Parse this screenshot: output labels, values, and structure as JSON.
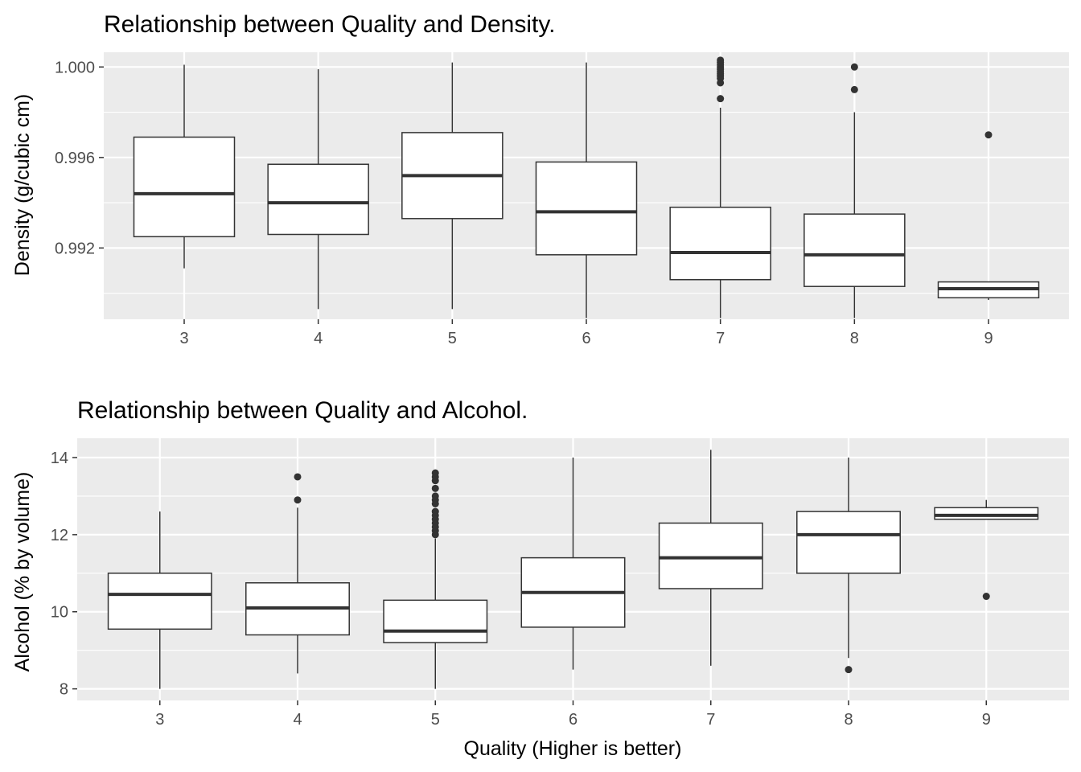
{
  "chart_data": [
    {
      "type": "boxplot",
      "title": "Relationship between Quality and Density.",
      "xlabel": "",
      "ylabel": "Density (g/cubic cm)",
      "categories": [
        "3",
        "4",
        "5",
        "6",
        "7",
        "8",
        "9"
      ],
      "ylim": [
        0.98885,
        1.00065
      ],
      "yticks": [
        0.992,
        0.996,
        1.0
      ],
      "ytick_labels": [
        "0.992",
        "0.996",
        "1.000"
      ],
      "grid": true,
      "boxes": [
        {
          "category": "3",
          "whisker_low": 0.9911,
          "q1": 0.9925,
          "median": 0.9944,
          "q3": 0.9969,
          "whisker_high": 1.0001,
          "outliers": []
        },
        {
          "category": "4",
          "whisker_low": 0.9893,
          "q1": 0.9926,
          "median": 0.994,
          "q3": 0.9957,
          "whisker_high": 0.9999,
          "outliers": []
        },
        {
          "category": "5",
          "whisker_low": 0.9893,
          "q1": 0.9933,
          "median": 0.9952,
          "q3": 0.9971,
          "whisker_high": 1.0002,
          "outliers": []
        },
        {
          "category": "6",
          "whisker_low": 0.9889,
          "q1": 0.9917,
          "median": 0.9936,
          "q3": 0.9958,
          "whisker_high": 1.0002,
          "outliers": []
        },
        {
          "category": "7",
          "whisker_low": 0.9889,
          "q1": 0.9906,
          "median": 0.9918,
          "q3": 0.9938,
          "whisker_high": 0.9982,
          "outliers": [
            0.9986,
            0.9993,
            0.9995,
            0.9996,
            0.9997,
            0.9998,
            0.9999,
            1.0,
            1.0001,
            1.0002,
            1.0003
          ]
        },
        {
          "category": "8",
          "whisker_low": 0.9889,
          "q1": 0.9903,
          "median": 0.9917,
          "q3": 0.9935,
          "whisker_high": 0.998,
          "outliers": [
            0.999,
            1.0
          ]
        },
        {
          "category": "9",
          "whisker_low": 0.9897,
          "q1": 0.9898,
          "median": 0.9902,
          "q3": 0.9905,
          "whisker_high": 0.9905,
          "outliers": [
            0.997
          ]
        }
      ]
    },
    {
      "type": "boxplot",
      "title": "Relationship between Quality and Alcohol.",
      "xlabel": "Quality (Higher is better)",
      "ylabel": "Alcohol (% by volume)",
      "categories": [
        "3",
        "4",
        "5",
        "6",
        "7",
        "8",
        "9"
      ],
      "ylim": [
        7.7,
        14.5
      ],
      "yticks": [
        8,
        10,
        12,
        14
      ],
      "ytick_labels": [
        "8",
        "10",
        "12",
        "14"
      ],
      "grid": true,
      "boxes": [
        {
          "category": "3",
          "whisker_low": 8.0,
          "q1": 9.55,
          "median": 10.45,
          "q3": 11.0,
          "whisker_high": 12.6,
          "outliers": []
        },
        {
          "category": "4",
          "whisker_low": 8.4,
          "q1": 9.4,
          "median": 10.1,
          "q3": 10.75,
          "whisker_high": 12.7,
          "outliers": [
            12.9,
            13.5
          ]
        },
        {
          "category": "5",
          "whisker_low": 8.0,
          "q1": 9.2,
          "median": 9.5,
          "q3": 10.3,
          "whisker_high": 11.9,
          "outliers": [
            12.0,
            12.1,
            12.2,
            12.3,
            12.4,
            12.5,
            12.6,
            12.8,
            12.9,
            13.0,
            13.2,
            13.4,
            13.5,
            13.6
          ]
        },
        {
          "category": "6",
          "whisker_low": 8.5,
          "q1": 9.6,
          "median": 10.5,
          "q3": 11.4,
          "whisker_high": 14.0,
          "outliers": []
        },
        {
          "category": "7",
          "whisker_low": 8.6,
          "q1": 10.6,
          "median": 11.4,
          "q3": 12.3,
          "whisker_high": 14.2,
          "outliers": []
        },
        {
          "category": "8",
          "whisker_low": 8.8,
          "q1": 11.0,
          "median": 12.0,
          "q3": 12.6,
          "whisker_high": 14.0,
          "outliers": [
            8.5
          ]
        },
        {
          "category": "9",
          "whisker_low": 12.4,
          "q1": 12.4,
          "median": 12.5,
          "q3": 12.7,
          "whisker_high": 12.9,
          "outliers": [
            10.4
          ]
        }
      ]
    }
  ],
  "colors": {
    "panel_background": "#ebebeb",
    "grid_line": "#ffffff",
    "box_fill": "#ffffff",
    "box_stroke": "#333333",
    "outlier": "#333333",
    "tick_label": "#4d4d4d",
    "tick_mark": "#333333"
  }
}
